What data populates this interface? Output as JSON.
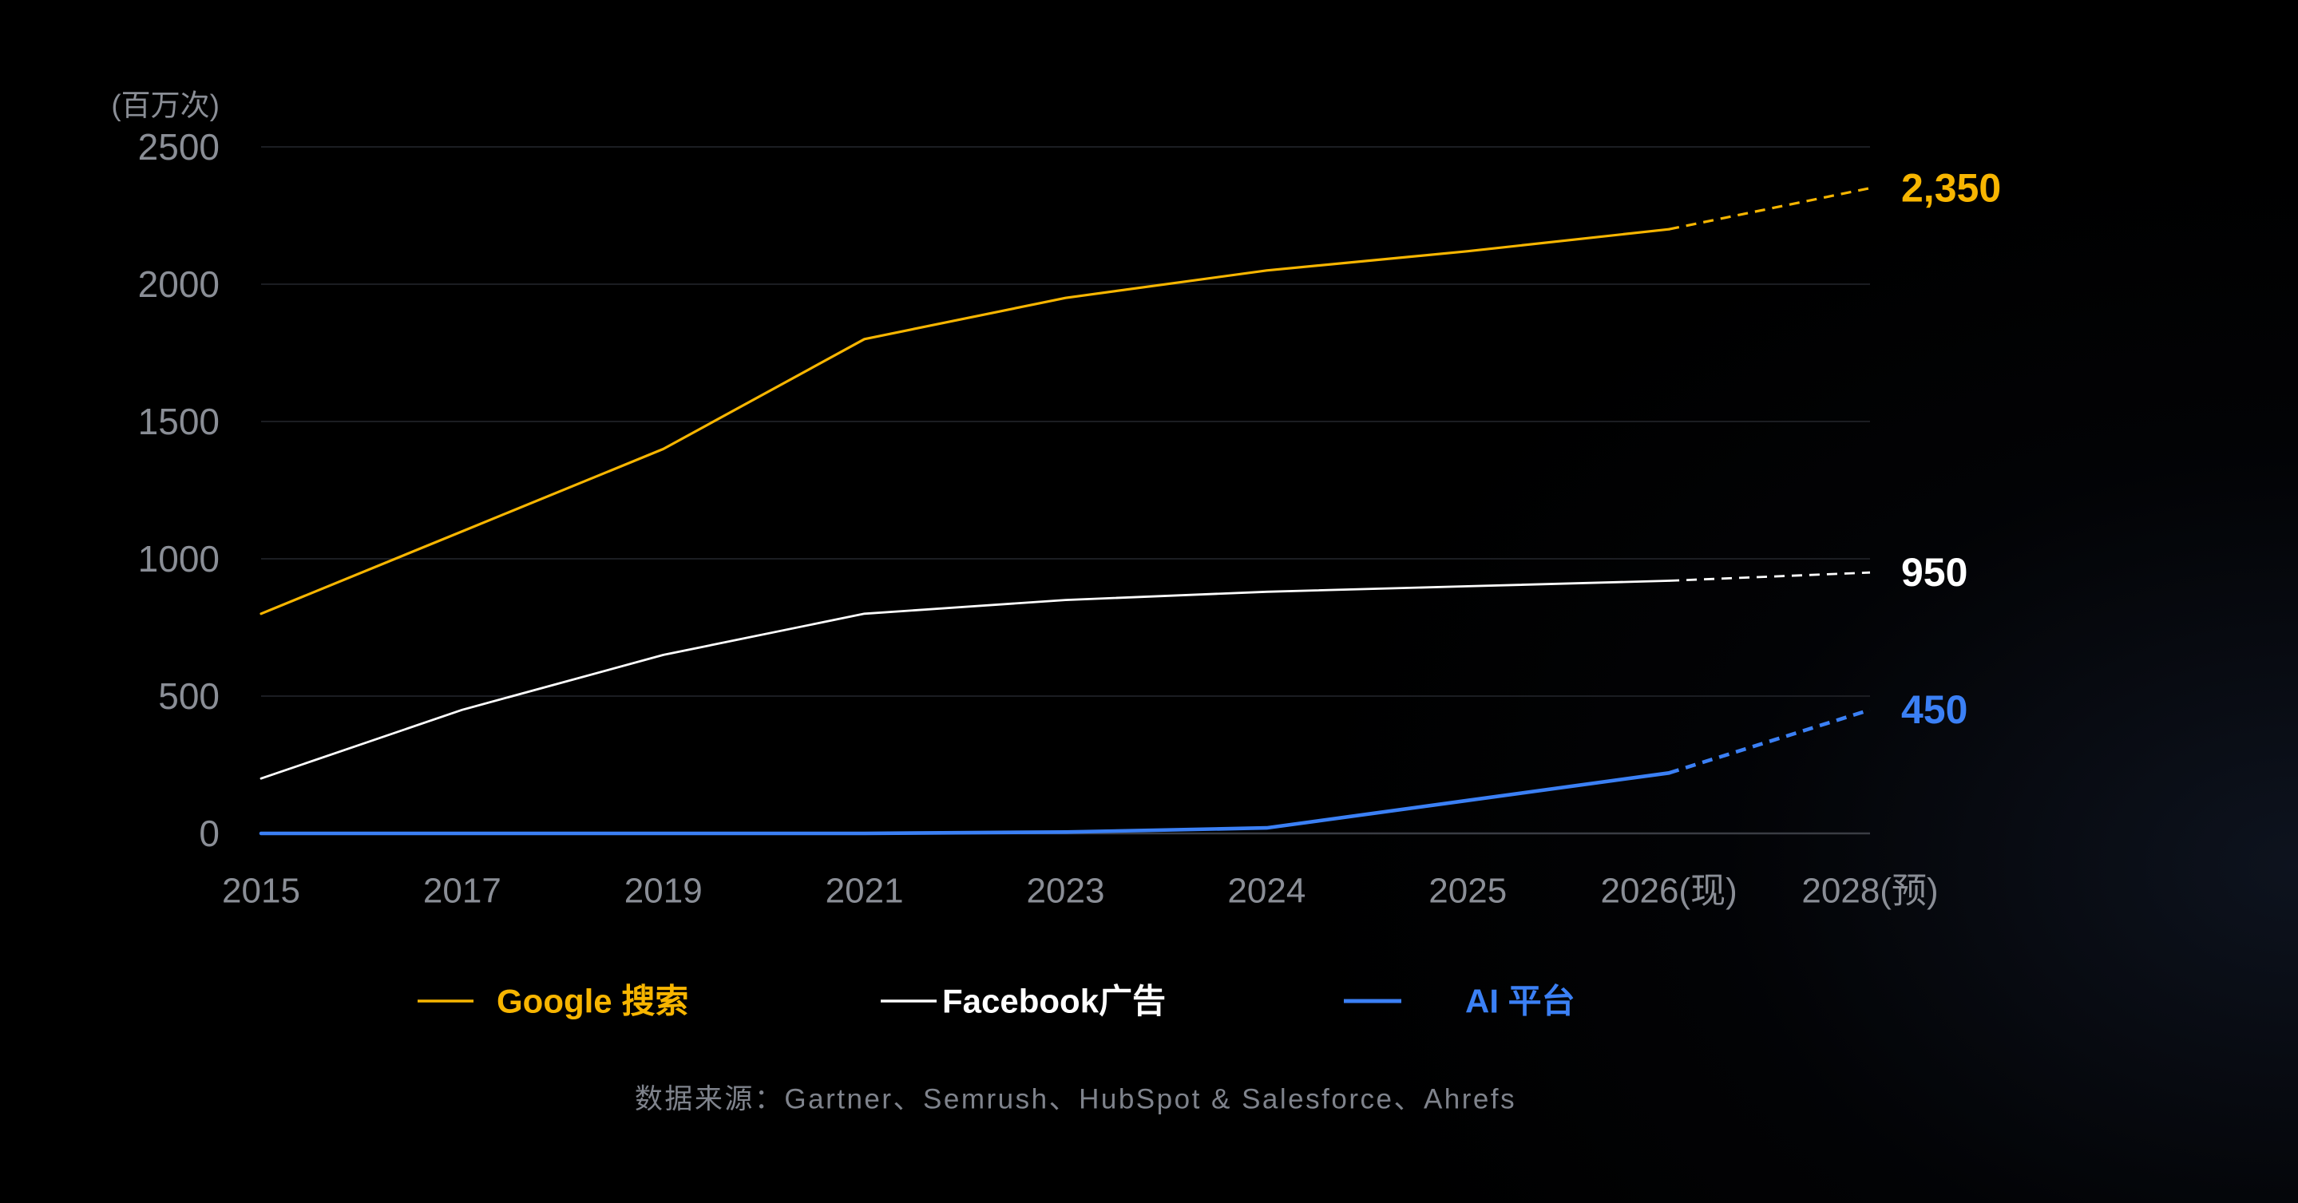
{
  "chart_data": {
    "type": "line",
    "ylabel": "(百万次)",
    "categories": [
      "2015",
      "2017",
      "2019",
      "2021",
      "2023",
      "2024",
      "2025",
      "2026(现)",
      "2028(预)"
    ],
    "yticks": [
      0,
      500,
      1000,
      1500,
      2000,
      2500
    ],
    "ylim": [
      0,
      2500
    ],
    "grid": true,
    "legend": "bottom",
    "forecast_from": "2026(现)",
    "series": [
      {
        "name": "Google 搜索",
        "color": "#f7b500",
        "values": [
          800,
          1100,
          1400,
          1800,
          1950,
          2050,
          2120,
          2200,
          2350
        ],
        "end_label": "2,350"
      },
      {
        "name": "Facebook广告",
        "color": "#ffffff",
        "values": [
          200,
          450,
          650,
          800,
          850,
          880,
          900,
          920,
          950
        ],
        "end_label": "950"
      },
      {
        "name": "AI 平台",
        "color": "#3b80f5",
        "values": [
          0,
          0,
          0,
          0,
          5,
          20,
          120,
          220,
          450
        ],
        "end_label": "450"
      }
    ]
  },
  "source_note": "数据来源：Gartner、Semrush、HubSpot & Salesforce、Ahrefs"
}
